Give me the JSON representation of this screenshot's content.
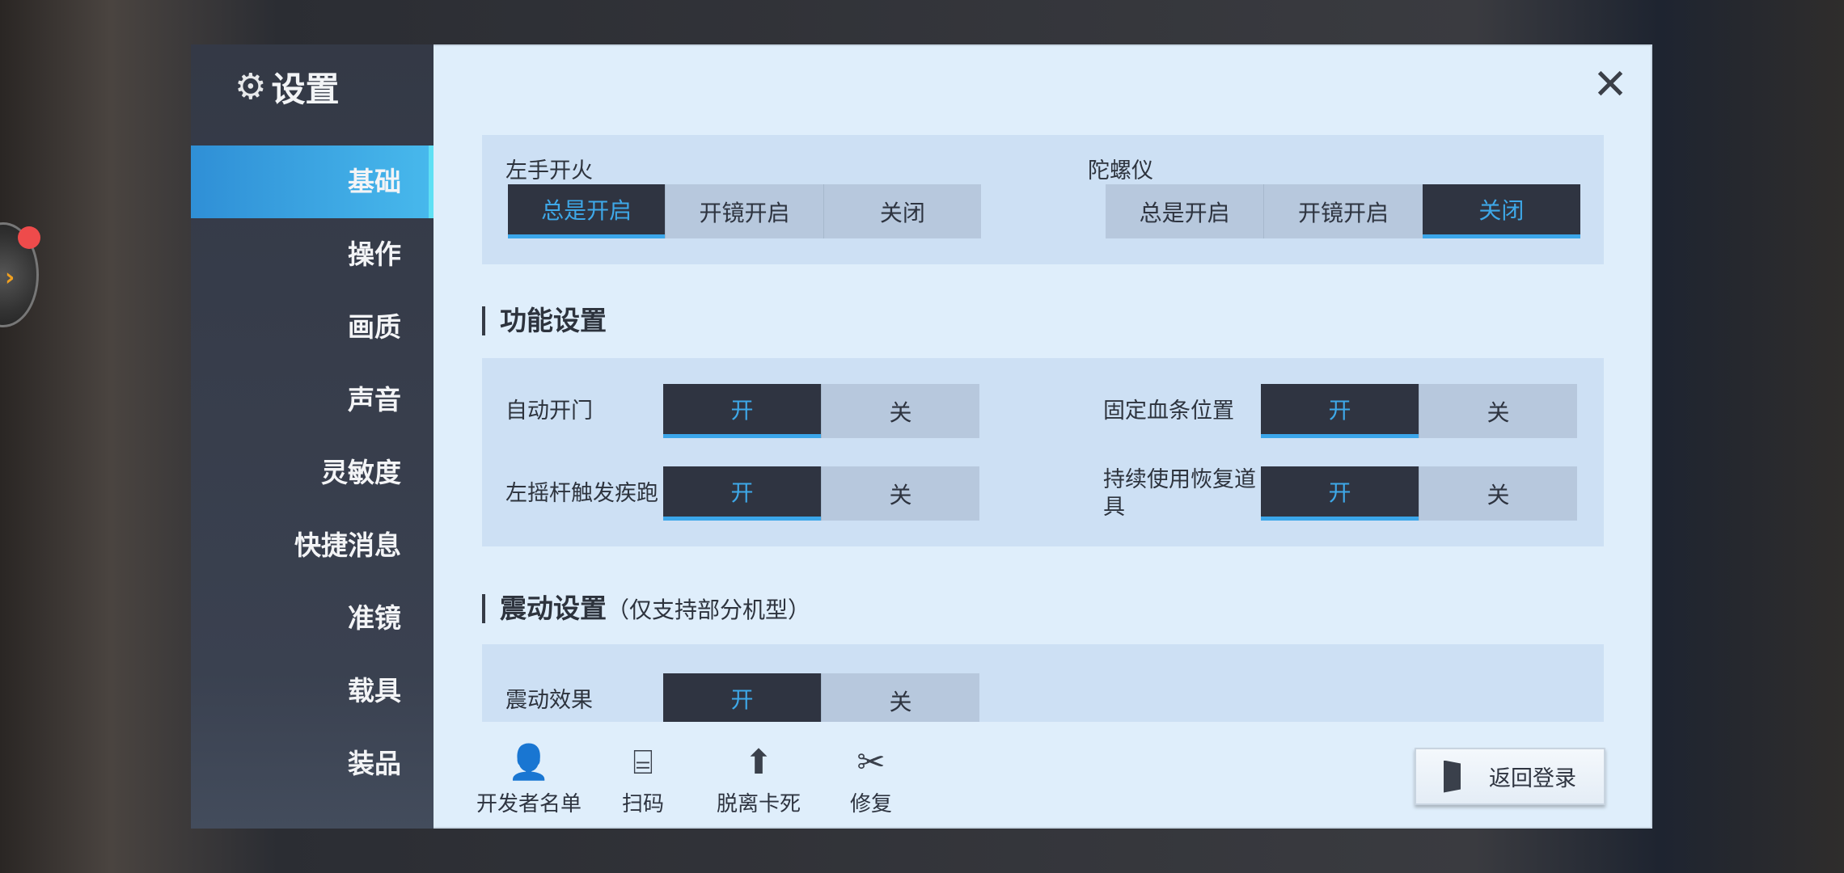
{
  "window": {
    "title": "设置",
    "close_icon": "close-icon",
    "gear_icon": "gear-icon"
  },
  "sidebar": {
    "items": [
      {
        "label": "基础",
        "active": true
      },
      {
        "label": "操作"
      },
      {
        "label": "画质"
      },
      {
        "label": "声音"
      },
      {
        "label": "灵敏度"
      },
      {
        "label": "快捷消息"
      },
      {
        "label": "准镜"
      },
      {
        "label": "载具"
      },
      {
        "label": "装品"
      }
    ]
  },
  "basic": {
    "left_fire": {
      "label": "左手开火",
      "options": [
        "总是开启",
        "开镜开启",
        "关闭"
      ],
      "selected": "总是开启"
    },
    "gyro": {
      "label": "陀螺仪",
      "options": [
        "总是开启",
        "开镜开启",
        "关闭"
      ],
      "selected": "关闭"
    }
  },
  "function": {
    "heading": "功能设置",
    "rows": [
      {
        "label": "自动开门",
        "on": "开",
        "off": "关",
        "selected": "开"
      },
      {
        "label": "固定血条位置",
        "on": "开",
        "off": "关",
        "selected": "开"
      },
      {
        "label": "左摇杆触发疾跑",
        "on": "开",
        "off": "关",
        "selected": "开"
      },
      {
        "label": "持续使用恢复道具",
        "on": "开",
        "off": "关",
        "selected": "开"
      }
    ]
  },
  "vibration": {
    "heading": "震动设置",
    "note": "（仅支持部分机型）",
    "rows": [
      {
        "label": "震动效果",
        "on": "开",
        "off": "关",
        "selected": "开"
      }
    ]
  },
  "tools": [
    {
      "label": "开发者名单",
      "icon": "contact-book-icon"
    },
    {
      "label": "扫码",
      "icon": "scan-icon"
    },
    {
      "label": "脱离卡死",
      "icon": "upload-arrow-icon"
    },
    {
      "label": "修复",
      "icon": "wrench-screwdriver-icon"
    }
  ],
  "back_login": {
    "label": "返回登录",
    "icon": "exit-door-icon"
  },
  "colors": {
    "accent": "#3ea8e8",
    "sidebar": "#343946",
    "panel": "#dfeefb",
    "active_tab": "#3aa6e0",
    "notification": "#ee4b4b"
  }
}
